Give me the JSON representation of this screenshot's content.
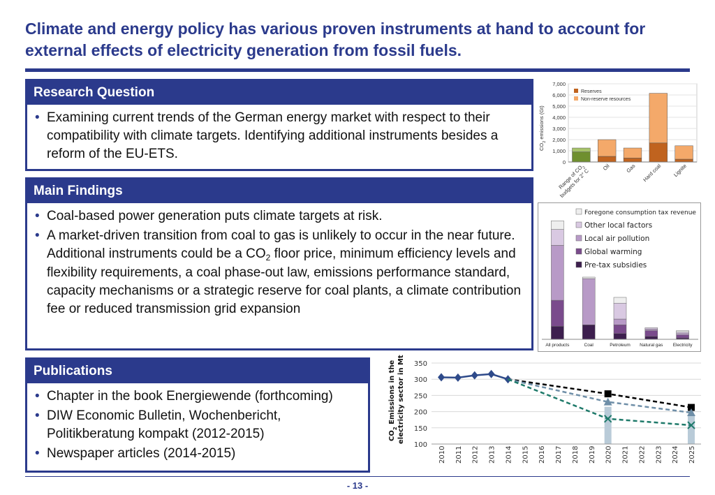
{
  "title": "Climate and energy policy has various proven instruments at hand to account for external effects of electricity generation from fossil fuels.",
  "research": {
    "heading": "Research Question",
    "bullets": [
      "Examining current trends of the German energy market with respect to their compatibility with climate targets. Identifying additional instruments besides a reform of the EU-ETS."
    ]
  },
  "findings": {
    "heading": "Main Findings",
    "bullet1": "Coal-based power generation puts climate targets at risk.",
    "bullet2_a": "A market-driven transition from coal to gas is unlikely to occur in the near future. Additional instruments could be a CO",
    "bullet2_sub": "2",
    "bullet2_b": " floor price, minimum efficiency levels and flexibility requirements, a coal phase-out law, emissions performance standard, capacity mechanisms or a strategic reserve for coal plants, a climate contribution fee or reduced transmission grid expansion"
  },
  "publications": {
    "heading": "Publications",
    "bullets": [
      "Chapter in the book Energiewende (forthcoming)",
      "DIW Economic Bulletin, Wochenbericht, Politikberatung kompakt (2012-2015)",
      "Newspaper articles (2014-2015)"
    ]
  },
  "page_number": "- 13 -",
  "chart_data": [
    {
      "type": "bar",
      "stacked": true,
      "ylabel_main": "CO",
      "ylabel_sub": "2",
      "ylabel_rest": " emissions (Gt)",
      "ylim": [
        0,
        7000
      ],
      "yticks": [
        "0",
        "1,000",
        "2,000",
        "3,000",
        "4,000",
        "5,000",
        "6,000",
        "7,000"
      ],
      "categories": [
        "Range of CO2 budgets for 2° C",
        "Oil",
        "Gas",
        "Hard coal",
        "Lignite"
      ],
      "cat_labels": [
        [
          "Range of CO",
          "2",
          ""
        ],
        [
          "Oil"
        ],
        [
          "Gas"
        ],
        [
          "Hard coal"
        ],
        [
          "Lignite"
        ]
      ],
      "cat_label_line2": "budgets for 2° C",
      "series": [
        {
          "name": "Reserves",
          "color": "#c0631f",
          "values": [
            900,
            500,
            350,
            1700,
            250
          ]
        },
        {
          "name": "Non-reserve resources",
          "color": "#f4a96a",
          "values": [
            0,
            1500,
            900,
            4450,
            1200
          ]
        }
      ],
      "budget_range": {
        "low_color": "#6f8f2e",
        "high_color": "#a7c36a",
        "low": 900,
        "high": 1250
      }
    },
    {
      "type": "bar",
      "stacked": true,
      "categories": [
        "All products",
        "Coal",
        "Petroleum",
        "Natural gas",
        "Electricity"
      ],
      "series": [
        {
          "name": "Pre-tax subsidies",
          "color": "#3d1f4e",
          "values": [
            9,
            10,
            4,
            2,
            1
          ]
        },
        {
          "name": "Global warming",
          "color": "#7a4b8c",
          "values": [
            18,
            0,
            6,
            4,
            2
          ]
        },
        {
          "name": "Local air pollution",
          "color": "#b89ac7",
          "values": [
            38,
            32,
            4,
            1,
            1
          ]
        },
        {
          "name": "Other local factors",
          "color": "#d9c9e2",
          "values": [
            11,
            0,
            11,
            1,
            1
          ]
        },
        {
          "name": "Foregone consumption tax revenue",
          "color": "#eeeeee",
          "values": [
            6,
            1,
            4,
            0,
            1
          ]
        }
      ],
      "ymax": 85
    },
    {
      "type": "line",
      "ylabel_line1": "CO2 Emissions in the",
      "ylabel_line1_main": "CO",
      "ylabel_line1_sub": "2",
      "ylabel_line1_rest": " Emissions in the",
      "ylabel_line2": "electricity sector in Mt",
      "ylim": [
        100,
        350
      ],
      "yticks": [
        "100",
        "150",
        "200",
        "250",
        "300",
        "350"
      ],
      "x": [
        "2010",
        "2011",
        "2012",
        "2013",
        "2014",
        "2015",
        "2016",
        "2017",
        "2018",
        "2019",
        "2020",
        "2021",
        "2022",
        "2023",
        "2024",
        "2025"
      ],
      "historical": {
        "color": "#2e4a8a",
        "x": [
          "2010",
          "2011",
          "2012",
          "2013",
          "2014"
        ],
        "values": [
          306,
          305,
          312,
          316,
          300
        ]
      },
      "scenarios": [
        {
          "color": "#000000",
          "marker": "square",
          "x": [
            "2014",
            "2020",
            "2025"
          ],
          "values": [
            300,
            255,
            213
          ]
        },
        {
          "color": "#6f8fa8",
          "marker": "triangle",
          "x": [
            "2014",
            "2020",
            "2025"
          ],
          "values": [
            300,
            230,
            197
          ]
        },
        {
          "color": "#1f7a6a",
          "marker": "x",
          "x": [
            "2014",
            "2020",
            "2025"
          ],
          "values": [
            300,
            178,
            158
          ]
        }
      ],
      "range_bars": [
        {
          "x": "2020",
          "low": 100,
          "high": 215
        },
        {
          "x": "2025",
          "low": 100,
          "high": 190
        }
      ]
    }
  ]
}
